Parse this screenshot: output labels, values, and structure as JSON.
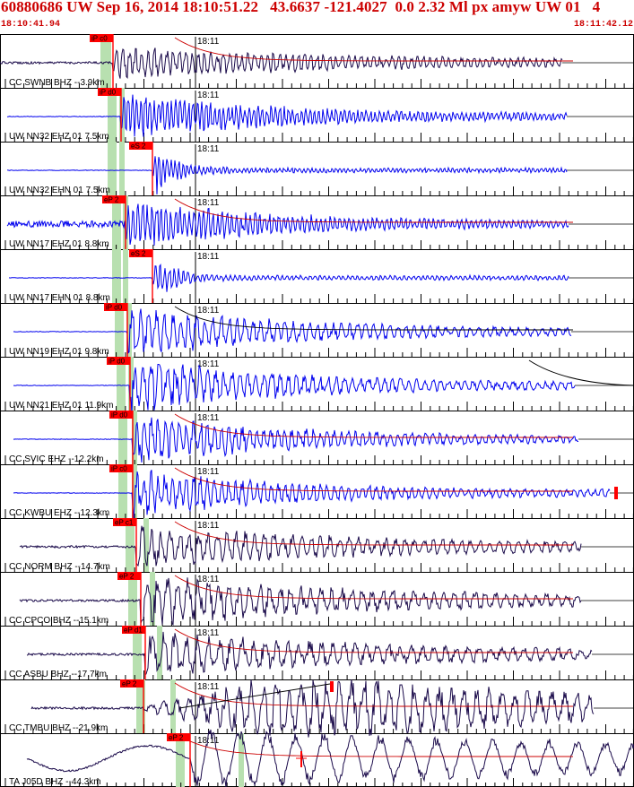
{
  "header": {
    "title": "60880686 UW Sep 16, 2014 18:10:51.22   43.6637 -121.4027  0.0 2.32 Ml px amyw UW 01   4",
    "start_time": "18:10:41.94",
    "end_time": "18:11:42.12"
  },
  "colors": {
    "background": "#ffffff",
    "header_text": "#cc0000",
    "trace_dark": "#1a0a4a",
    "trace_blue": "#0000ee",
    "pick_flag": "#ff0000",
    "pick_window": "#b8e0b0",
    "coda_curve": "#cc0000",
    "divider": "#000000"
  },
  "traces": [
    {
      "label": "CC SWNB BHZ --3.9km",
      "pick": "iP c0",
      "minute_mark": "18:11",
      "color": "dark"
    },
    {
      "label": "UW NN32 EHZ 01 7.5km",
      "pick": "iP d0",
      "minute_mark": "18:11",
      "color": "blue"
    },
    {
      "label": "UW NN32 EHN 01 7.5km",
      "pick": "eS 2",
      "minute_mark": "18:11",
      "color": "blue"
    },
    {
      "label": "UW NN17 EHZ 01 8.8km",
      "pick": "eP 2",
      "minute_mark": "18:11",
      "color": "blue"
    },
    {
      "label": "UW NN17 EHN 01 8.8km",
      "pick": "eS 2",
      "minute_mark": "18:11",
      "color": "blue"
    },
    {
      "label": "UW NN19 EHZ 01 9.8km",
      "pick": "iP d0",
      "minute_mark": "18:11",
      "color": "blue"
    },
    {
      "label": "UW NN21 EHZ 01 11.9km",
      "pick": "iP d0",
      "minute_mark": "18:11",
      "color": "blue"
    },
    {
      "label": "CC SVIC EHZ --12.2km",
      "pick": "iP d0",
      "minute_mark": "18:11",
      "color": "blue"
    },
    {
      "label": "CC KWBU EHZ --12.3km",
      "pick": "iP c0",
      "minute_mark": "18:11",
      "color": "blue"
    },
    {
      "label": "CC NORM BHZ --14.7km",
      "pick": "eP c1",
      "minute_mark": "18:11",
      "color": "dark"
    },
    {
      "label": "CC CPCO BHZ --15.1km",
      "pick": "eP 2",
      "minute_mark": "18:11",
      "color": "dark"
    },
    {
      "label": "CC ASBU BHZ --17.7km",
      "pick": "eP d1",
      "minute_mark": "18:11",
      "color": "dark"
    },
    {
      "label": "CC TMBU BHZ --21.9km",
      "pick": "eP 2",
      "minute_mark": "18:11",
      "color": "dark"
    },
    {
      "label": "TA J05D BHZ --44.3km",
      "pick": "eP 2",
      "minute_mark": "18:11",
      "color": "dark"
    }
  ]
}
